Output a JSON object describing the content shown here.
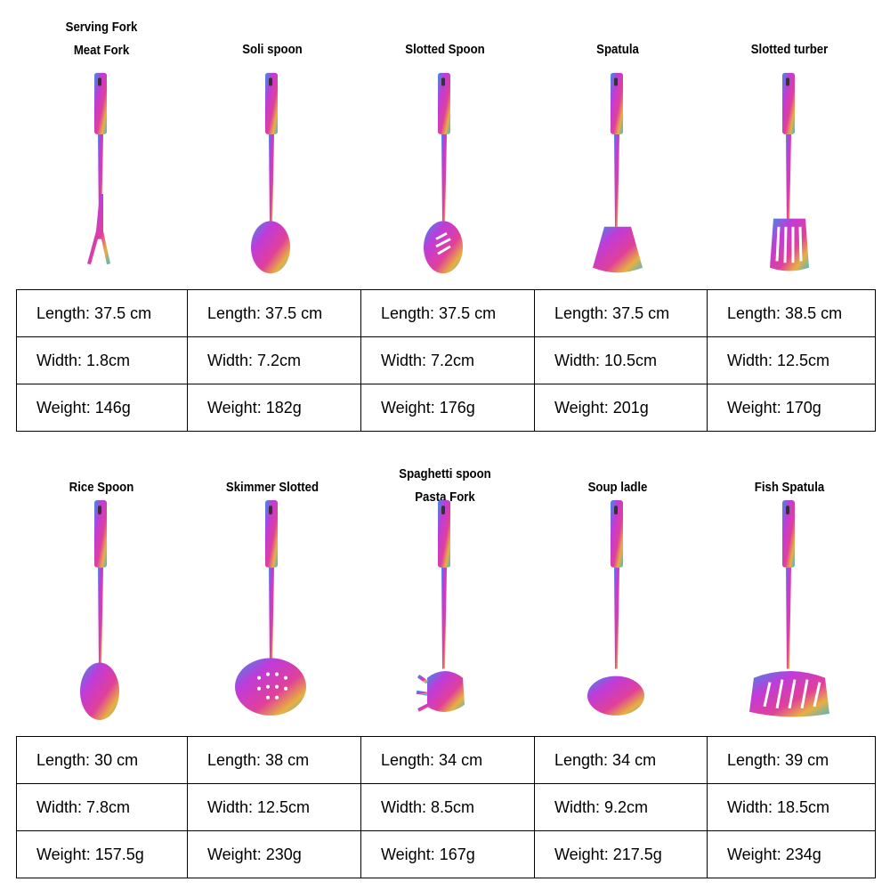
{
  "groups": [
    {
      "items": [
        {
          "title": [
            "Serving Fork",
            "Meat Fork"
          ],
          "length": "Length: 37.5 cm",
          "width": "Width: 1.8cm",
          "weight": "Weight: 146g",
          "icon": "fork-icon"
        },
        {
          "title": [
            "Soli spoon"
          ],
          "length": "Length: 37.5 cm",
          "width": "Width: 7.2cm",
          "weight": "Weight: 182g",
          "icon": "spoon-icon"
        },
        {
          "title": [
            "Slotted Spoon"
          ],
          "length": "Length: 37.5 cm",
          "width": "Width: 7.2cm",
          "weight": "Weight: 176g",
          "icon": "slotted-spoon-icon"
        },
        {
          "title": [
            "Spatula"
          ],
          "length": "Length: 37.5 cm",
          "width": "Width: 10.5cm",
          "weight": "Weight: 201g",
          "icon": "spatula-icon"
        },
        {
          "title": [
            "Slotted turber"
          ],
          "length": "Length: 38.5 cm",
          "width": "Width: 12.5cm",
          "weight": "Weight: 170g",
          "icon": "slotted-turner-icon"
        }
      ]
    },
    {
      "items": [
        {
          "title": [
            "Rice Spoon"
          ],
          "length": "Length: 30 cm",
          "width": "Width: 7.8cm",
          "weight": "Weight: 157.5g",
          "icon": "rice-spoon-icon"
        },
        {
          "title": [
            "Skimmer Slotted"
          ],
          "length": "Length: 38 cm",
          "width": "Width: 12.5cm",
          "weight": "Weight: 230g",
          "icon": "skimmer-icon"
        },
        {
          "title": [
            "Spaghetti spoon",
            "Pasta Fork"
          ],
          "length": "Length: 34 cm",
          "width": "Width: 8.5cm",
          "weight": "Weight: 167g",
          "icon": "pasta-fork-icon"
        },
        {
          "title": [
            "Soup ladle"
          ],
          "length": "Length: 34 cm",
          "width": "Width: 9.2cm",
          "weight": "Weight: 217.5g",
          "icon": "ladle-icon"
        },
        {
          "title": [
            "Fish Spatula"
          ],
          "length": "Length: 39 cm",
          "width": "Width: 18.5cm",
          "weight": "Weight: 234g",
          "icon": "fish-spatula-icon"
        }
      ]
    }
  ]
}
